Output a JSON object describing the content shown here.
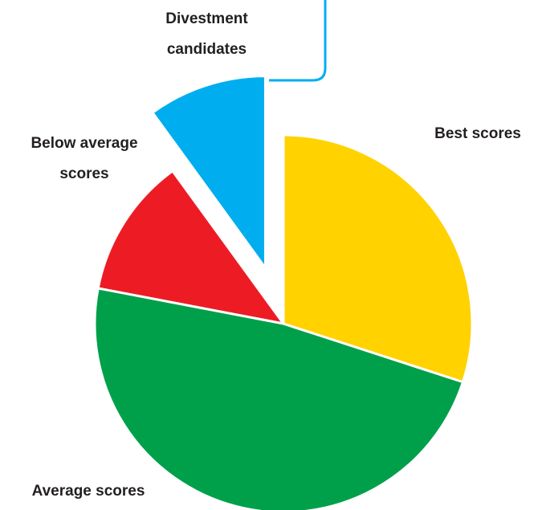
{
  "chart_data": {
    "type": "pie",
    "categories": [
      "Best scores",
      "Average scores",
      "Below average scores",
      "Divestment candidates"
    ],
    "values": [
      30,
      48,
      12,
      10
    ],
    "colors": [
      "#ffd200",
      "#00a04b",
      "#ed1c24",
      "#00aeef"
    ]
  }
}
